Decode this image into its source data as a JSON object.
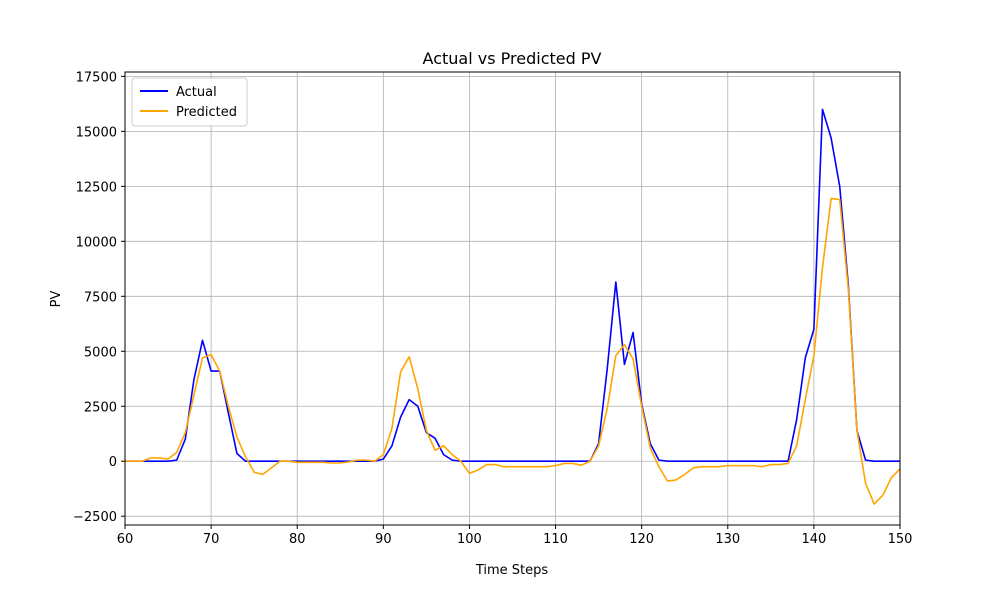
{
  "chart_data": {
    "type": "line",
    "title": "Actual vs Predicted PV",
    "xlabel": "Time Steps",
    "ylabel": "PV",
    "xlim": [
      60,
      150
    ],
    "ylim": [
      -2900,
      17700
    ],
    "grid": true,
    "legend_position": "top-left",
    "x_ticks": [
      60,
      70,
      80,
      90,
      100,
      110,
      120,
      130,
      140,
      150
    ],
    "y_ticks": [
      -2500,
      0,
      2500,
      5000,
      7500,
      10000,
      12500,
      15000,
      17500
    ],
    "x": [
      60,
      61,
      62,
      63,
      64,
      65,
      66,
      67,
      68,
      69,
      70,
      71,
      72,
      73,
      74,
      75,
      76,
      77,
      78,
      79,
      80,
      81,
      82,
      83,
      84,
      85,
      86,
      87,
      88,
      89,
      90,
      91,
      92,
      93,
      94,
      95,
      96,
      97,
      98,
      99,
      100,
      101,
      102,
      103,
      104,
      105,
      106,
      107,
      108,
      109,
      110,
      111,
      112,
      113,
      114,
      115,
      116,
      117,
      118,
      119,
      120,
      121,
      122,
      123,
      124,
      125,
      126,
      127,
      128,
      129,
      130,
      131,
      132,
      133,
      134,
      135,
      136,
      137,
      138,
      139,
      140,
      141,
      142,
      143,
      144,
      145,
      146,
      147,
      148,
      149,
      150
    ],
    "series": [
      {
        "name": "Actual",
        "color": "#0000ff",
        "values": [
          0,
          0,
          0,
          0,
          0,
          0,
          50,
          1000,
          3700,
          5500,
          4100,
          4100,
          2200,
          350,
          0,
          0,
          0,
          0,
          0,
          0,
          0,
          0,
          0,
          0,
          0,
          0,
          0,
          0,
          0,
          0,
          100,
          700,
          2000,
          2800,
          2500,
          1300,
          1050,
          300,
          50,
          0,
          0,
          0,
          0,
          0,
          0,
          0,
          0,
          0,
          0,
          0,
          0,
          0,
          0,
          0,
          0,
          800,
          4200,
          8150,
          4400,
          5850,
          2600,
          800,
          50,
          0,
          0,
          0,
          0,
          0,
          0,
          0,
          0,
          0,
          0,
          0,
          0,
          0,
          0,
          0,
          1900,
          4700,
          6000,
          16000,
          14700,
          12500,
          8000,
          1400,
          50,
          0,
          0,
          0,
          0
        ]
      },
      {
        "name": "Predicted",
        "color": "#ffa500",
        "values": [
          0,
          0,
          0,
          150,
          150,
          100,
          400,
          1300,
          3000,
          4700,
          4850,
          4100,
          2500,
          1100,
          200,
          -500,
          -600,
          -300,
          0,
          0,
          -50,
          -50,
          -50,
          -50,
          -80,
          -80,
          -30,
          50,
          50,
          0,
          300,
          1500,
          4050,
          4750,
          3300,
          1400,
          500,
          700,
          300,
          0,
          -550,
          -400,
          -150,
          -150,
          -250,
          -250,
          -250,
          -250,
          -250,
          -250,
          -200,
          -100,
          -100,
          -180,
          0,
          700,
          2400,
          4800,
          5300,
          4650,
          2500,
          600,
          -250,
          -900,
          -850,
          -600,
          -300,
          -250,
          -250,
          -250,
          -200,
          -200,
          -200,
          -200,
          -250,
          -150,
          -150,
          -100,
          700,
          2800,
          4800,
          8800,
          11950,
          11900,
          7800,
          1400,
          -1000,
          -1950,
          -1550,
          -750,
          -350
        ]
      }
    ]
  }
}
